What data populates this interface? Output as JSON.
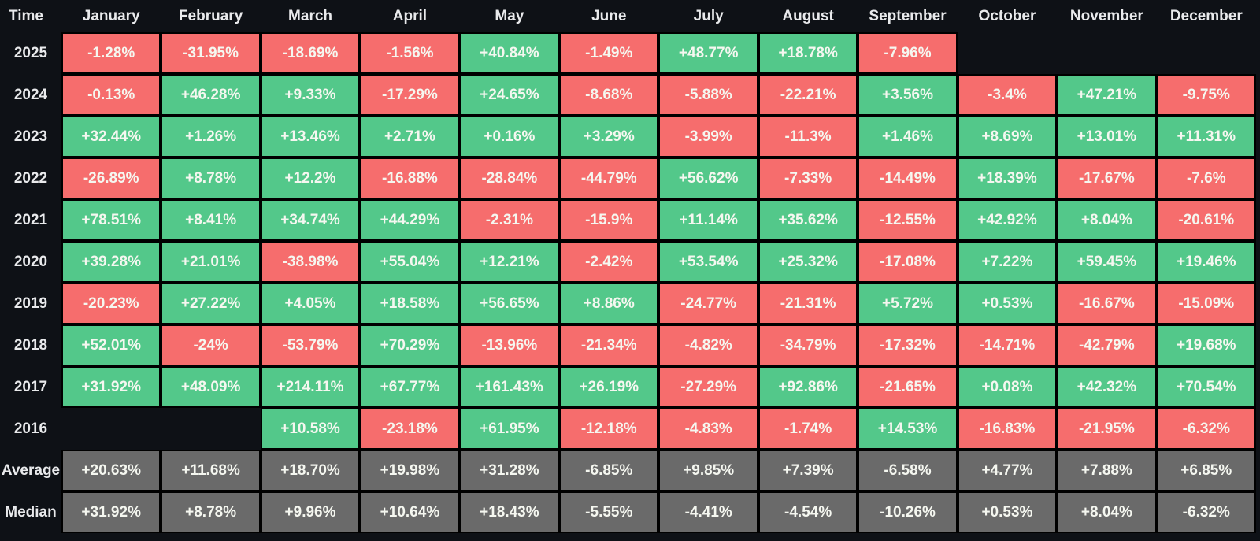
{
  "table": {
    "corner_label": "Time",
    "months": [
      "January",
      "February",
      "March",
      "April",
      "May",
      "June",
      "July",
      "August",
      "September",
      "October",
      "November",
      "December"
    ],
    "rows": [
      {
        "label": "2025",
        "type": "year",
        "cells": [
          "-1.28%",
          "-31.95%",
          "-18.69%",
          "-1.56%",
          "+40.84%",
          "-1.49%",
          "+48.77%",
          "+18.78%",
          "-7.96%",
          "",
          "",
          ""
        ]
      },
      {
        "label": "2024",
        "type": "year",
        "cells": [
          "-0.13%",
          "+46.28%",
          "+9.33%",
          "-17.29%",
          "+24.65%",
          "-8.68%",
          "-5.88%",
          "-22.21%",
          "+3.56%",
          "-3.4%",
          "+47.21%",
          "-9.75%"
        ]
      },
      {
        "label": "2023",
        "type": "year",
        "cells": [
          "+32.44%",
          "+1.26%",
          "+13.46%",
          "+2.71%",
          "+0.16%",
          "+3.29%",
          "-3.99%",
          "-11.3%",
          "+1.46%",
          "+8.69%",
          "+13.01%",
          "+11.31%"
        ]
      },
      {
        "label": "2022",
        "type": "year",
        "cells": [
          "-26.89%",
          "+8.78%",
          "+12.2%",
          "-16.88%",
          "-28.84%",
          "-44.79%",
          "+56.62%",
          "-7.33%",
          "-14.49%",
          "+18.39%",
          "-17.67%",
          "-7.6%"
        ]
      },
      {
        "label": "2021",
        "type": "year",
        "cells": [
          "+78.51%",
          "+8.41%",
          "+34.74%",
          "+44.29%",
          "-2.31%",
          "-15.9%",
          "+11.14%",
          "+35.62%",
          "-12.55%",
          "+42.92%",
          "+8.04%",
          "-20.61%"
        ]
      },
      {
        "label": "2020",
        "type": "year",
        "cells": [
          "+39.28%",
          "+21.01%",
          "-38.98%",
          "+55.04%",
          "+12.21%",
          "-2.42%",
          "+53.54%",
          "+25.32%",
          "-17.08%",
          "+7.22%",
          "+59.45%",
          "+19.46%"
        ]
      },
      {
        "label": "2019",
        "type": "year",
        "cells": [
          "-20.23%",
          "+27.22%",
          "+4.05%",
          "+18.58%",
          "+56.65%",
          "+8.86%",
          "-24.77%",
          "-21.31%",
          "+5.72%",
          "+0.53%",
          "-16.67%",
          "-15.09%"
        ]
      },
      {
        "label": "2018",
        "type": "year",
        "cells": [
          "+52.01%",
          "-24%",
          "-53.79%",
          "+70.29%",
          "-13.96%",
          "-21.34%",
          "-4.82%",
          "-34.79%",
          "-17.32%",
          "-14.71%",
          "-42.79%",
          "+19.68%"
        ]
      },
      {
        "label": "2017",
        "type": "year",
        "cells": [
          "+31.92%",
          "+48.09%",
          "+214.11%",
          "+67.77%",
          "+161.43%",
          "+26.19%",
          "-27.29%",
          "+92.86%",
          "-21.65%",
          "+0.08%",
          "+42.32%",
          "+70.54%"
        ]
      },
      {
        "label": "2016",
        "type": "year",
        "cells": [
          "",
          "",
          "+10.58%",
          "-23.18%",
          "+61.95%",
          "-12.18%",
          "-4.83%",
          "-1.74%",
          "+14.53%",
          "-16.83%",
          "-21.95%",
          "-6.32%"
        ]
      },
      {
        "label": "Average",
        "type": "summary",
        "cells": [
          "+20.63%",
          "+11.68%",
          "+18.70%",
          "+19.98%",
          "+31.28%",
          "-6.85%",
          "+9.85%",
          "+7.39%",
          "-6.58%",
          "+4.77%",
          "+7.88%",
          "+6.85%"
        ]
      },
      {
        "label": "Median",
        "type": "summary",
        "cells": [
          "+31.92%",
          "+8.78%",
          "+9.96%",
          "+10.64%",
          "+18.43%",
          "-5.55%",
          "-4.41%",
          "-4.54%",
          "-10.26%",
          "+0.53%",
          "+8.04%",
          "-6.32%"
        ]
      }
    ]
  },
  "colors": {
    "background": "#0e1116",
    "positive": "#53c88a",
    "negative": "#f66d6d",
    "summary": "#6a6a6a",
    "cell_border": "#000000",
    "cell_text": "#f5f7f0",
    "label_text": "#e9eaec"
  },
  "chart_data": {
    "type": "heatmap",
    "title": "Monthly returns (%) by year",
    "x": [
      "January",
      "February",
      "March",
      "April",
      "May",
      "June",
      "July",
      "August",
      "September",
      "October",
      "November",
      "December"
    ],
    "y": [
      "2025",
      "2024",
      "2023",
      "2022",
      "2021",
      "2020",
      "2019",
      "2018",
      "2017",
      "2016",
      "Average",
      "Median"
    ],
    "value_unit": "%",
    "values": [
      [
        -1.28,
        -31.95,
        -18.69,
        -1.56,
        40.84,
        -1.49,
        48.77,
        18.78,
        -7.96,
        null,
        null,
        null
      ],
      [
        -0.13,
        46.28,
        9.33,
        -17.29,
        24.65,
        -8.68,
        -5.88,
        -22.21,
        3.56,
        -3.4,
        47.21,
        -9.75
      ],
      [
        32.44,
        1.26,
        13.46,
        2.71,
        0.16,
        3.29,
        -3.99,
        -11.3,
        1.46,
        8.69,
        13.01,
        11.31
      ],
      [
        -26.89,
        8.78,
        12.2,
        -16.88,
        -28.84,
        -44.79,
        56.62,
        -7.33,
        -14.49,
        18.39,
        -17.67,
        -7.6
      ],
      [
        78.51,
        8.41,
        34.74,
        44.29,
        -2.31,
        -15.9,
        11.14,
        35.62,
        -12.55,
        42.92,
        8.04,
        -20.61
      ],
      [
        39.28,
        21.01,
        -38.98,
        55.04,
        12.21,
        -2.42,
        53.54,
        25.32,
        -17.08,
        7.22,
        59.45,
        19.46
      ],
      [
        -20.23,
        27.22,
        4.05,
        18.58,
        56.65,
        8.86,
        -24.77,
        -21.31,
        5.72,
        0.53,
        -16.67,
        -15.09
      ],
      [
        52.01,
        -24,
        -53.79,
        70.29,
        -13.96,
        -21.34,
        -4.82,
        -34.79,
        -17.32,
        -14.71,
        -42.79,
        19.68
      ],
      [
        31.92,
        48.09,
        214.11,
        67.77,
        161.43,
        26.19,
        -27.29,
        92.86,
        -21.65,
        0.08,
        42.32,
        70.54
      ],
      [
        null,
        null,
        10.58,
        -23.18,
        61.95,
        -12.18,
        -4.83,
        -1.74,
        14.53,
        -16.83,
        -21.95,
        -6.32
      ],
      [
        20.63,
        11.68,
        18.7,
        19.98,
        31.28,
        -6.85,
        9.85,
        7.39,
        -6.58,
        4.77,
        7.88,
        6.85
      ],
      [
        31.92,
        8.78,
        9.96,
        10.64,
        18.43,
        -5.55,
        -4.41,
        -4.54,
        -10.26,
        0.53,
        8.04,
        -6.32
      ]
    ],
    "color_rule": "green = positive, red = negative, gray = Average/Median summary rows, blank = no data",
    "legend": "none",
    "grid": "black borders between cells"
  }
}
